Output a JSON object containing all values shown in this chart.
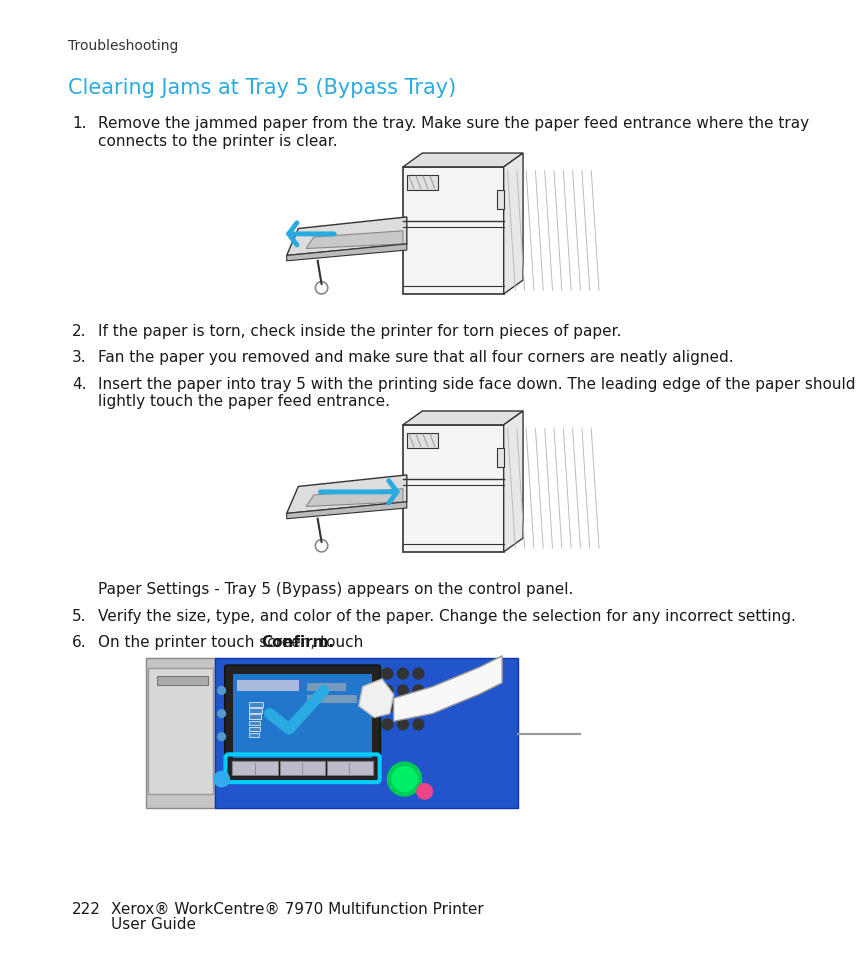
{
  "bg_color": "#ffffff",
  "header_text": "Troubleshooting",
  "title": "Clearing Jams at Tray 5 (Bypass Tray)",
  "title_color": "#29ABE2",
  "body_font_size": 11,
  "header_font_size": 10,
  "title_font_size": 15,
  "step1_text": "Remove the jammed paper from the tray. Make sure the paper feed entrance where the tray\nconnects to the printer is clear.",
  "step2_text": "If the paper is torn, check inside the printer for torn pieces of paper.",
  "step3_text": "Fan the paper you removed and make sure that all four corners are neatly aligned.",
  "step4_text": "Insert the paper into tray 5 with the printing side face down. The leading edge of the paper should\nlightly touch the paper feed entrance.",
  "step5_text": "Verify the size, type, and color of the paper. Change the selection for any incorrect setting.",
  "step6_pre": "On the printer touch screen, touch ",
  "step6_bold": "Confirm",
  "step6_post": ".",
  "paper_settings_note": "Paper Settings - Tray 5 (Bypass) appears on the control panel.",
  "footer_page": "222",
  "footer_line1": "Xerox® WorkCentre® 7970 Multifunction Printer",
  "footer_line2": "User Guide",
  "cyan_arrow": "#29ABE2",
  "dark_line": "#333333",
  "light_gray": "#cccccc",
  "mid_gray": "#999999",
  "panel_blue": "#2255cc",
  "panel_blue_dark": "#1133aa",
  "screen_blue": "#2277cc",
  "confirm_cyan": "#00ccff",
  "green_btn": "#00cc55",
  "pink_btn": "#ee4488"
}
